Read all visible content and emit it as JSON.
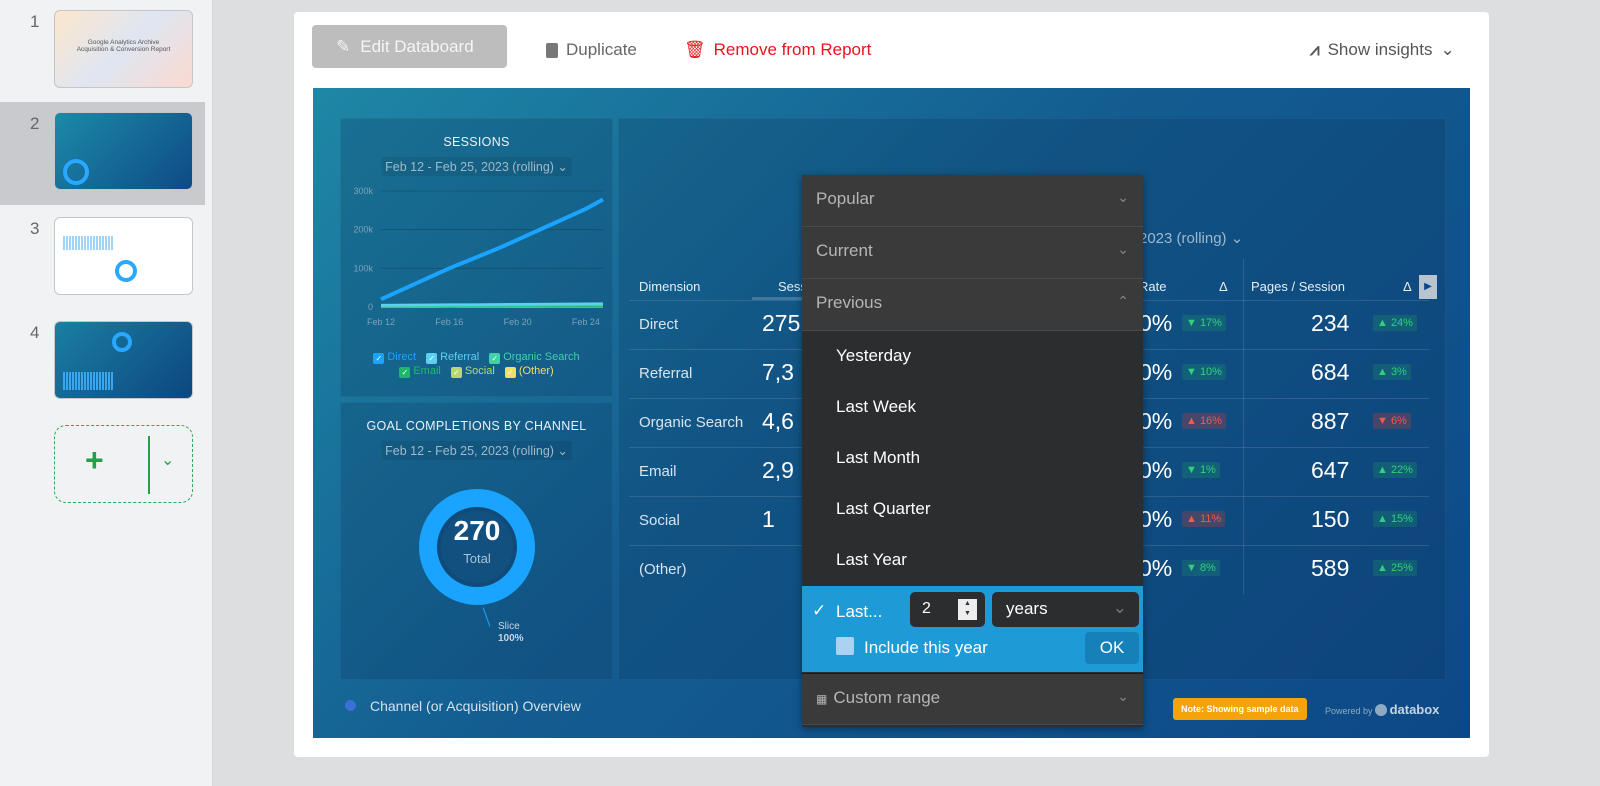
{
  "sidebar": {
    "slides": [
      {
        "num": "1",
        "title": "Google Analytics Archive",
        "subtitle": "Acquisition & Conversion Report"
      },
      {
        "num": "2"
      },
      {
        "num": "3"
      },
      {
        "num": "4"
      }
    ],
    "add_label": "+"
  },
  "toolbar": {
    "edit": "Edit Databoard",
    "duplicate": "Duplicate",
    "remove": "Remove from Report",
    "insights": "Show insights"
  },
  "sessions": {
    "title": "SESSIONS",
    "date": "Feb 12 - Feb 25, 2023 (rolling)",
    "legend": [
      {
        "name": "Direct",
        "color": "#1aa3ff"
      },
      {
        "name": "Referral",
        "color": "#5bd0f0"
      },
      {
        "name": "Organic Search",
        "color": "#3fd1a8"
      },
      {
        "name": "Email",
        "color": "#1fb86a"
      },
      {
        "name": "Social",
        "color": "#b7d96a"
      },
      {
        "name": "(Other)",
        "color": "#f0e060"
      }
    ]
  },
  "chart_data": {
    "type": "line",
    "x": [
      "Feb 12",
      "Feb 13",
      "Feb 14",
      "Feb 15",
      "Feb 16",
      "Feb 17",
      "Feb 18",
      "Feb 19",
      "Feb 20",
      "Feb 21",
      "Feb 22",
      "Feb 23",
      "Feb 24",
      "Feb 25"
    ],
    "xticks": [
      "Feb 12",
      "Feb 16",
      "Feb 20",
      "Feb 24"
    ],
    "yticks": [
      "0",
      "100k",
      "200k",
      "300k"
    ],
    "ylim": [
      0,
      300000
    ],
    "series": [
      {
        "name": "Direct",
        "values": [
          20000,
          40000,
          60000,
          80000,
          100000,
          118000,
          136000,
          154000,
          174000,
          194000,
          214000,
          234000,
          254000,
          278000
        ]
      },
      {
        "name": "Referral",
        "values": [
          5000,
          5200,
          5500,
          5800,
          6000,
          6300,
          6600,
          6900,
          7200,
          7500,
          7800,
          8100,
          8400,
          8700
        ]
      },
      {
        "name": "Organic Search",
        "values": [
          3000,
          3200,
          3400,
          3600,
          3800,
          4000,
          4200,
          4400,
          4600,
          4800,
          5000,
          5200,
          5400,
          5600
        ]
      },
      {
        "name": "Email",
        "values": [
          2000,
          2100,
          2200,
          2300,
          2400,
          2500,
          2600,
          2700,
          2800,
          2900,
          3000,
          3100,
          3200,
          3300
        ]
      },
      {
        "name": "Social",
        "values": [
          1000,
          1000,
          1100,
          1100,
          1200,
          1200,
          1300,
          1300,
          1400,
          1400,
          1500,
          1500,
          1600,
          1600
        ]
      },
      {
        "name": "(Other)",
        "values": [
          2000,
          2000,
          2000,
          2100,
          2100,
          2100,
          2200,
          2200,
          2200,
          2300,
          2300,
          2300,
          2400,
          2400
        ]
      }
    ]
  },
  "goals": {
    "title": "GOAL COMPLETIONS BY CHANNEL",
    "date": "Feb 12 - Feb 25, 2023 (rolling)",
    "total": "270",
    "total_label": "Total",
    "slice_label": "Slice",
    "slice_pct": "100%"
  },
  "table": {
    "date_fragment": "2023 (rolling)",
    "headers": {
      "dimension": "Dimension",
      "sessions": "Sess",
      "rate": "Rate",
      "delta": "Δ",
      "pages": "Pages / Session",
      "delta2": "Δ"
    },
    "rows": [
      {
        "dim": "Direct",
        "sessions": "275",
        "rate": "0%",
        "rate_delta": "▼ 17%",
        "rate_dir": "up",
        "pages": "234",
        "pages_delta": "▲ 24%",
        "pages_dir": "up"
      },
      {
        "dim": "Referral",
        "sessions": "7,3",
        "rate": "0%",
        "rate_delta": "▼ 10%",
        "rate_dir": "up",
        "pages": "684",
        "pages_delta": "▲ 3%",
        "pages_dir": "up"
      },
      {
        "dim": "Organic Search",
        "sessions": "4,6",
        "rate": "0%",
        "rate_delta": "▲ 16%",
        "rate_dir": "dn",
        "pages": "887",
        "pages_delta": "▼ 6%",
        "pages_dir": "dn"
      },
      {
        "dim": "Email",
        "sessions": "2,9",
        "rate": "0%",
        "rate_delta": "▼ 1%",
        "rate_dir": "up",
        "pages": "647",
        "pages_delta": "▲ 22%",
        "pages_dir": "up"
      },
      {
        "dim": "Social",
        "sessions": "1",
        "rate": "0%",
        "rate_delta": "▲ 11%",
        "rate_dir": "dn",
        "pages": "150",
        "pages_delta": "▲ 15%",
        "pages_dir": "up"
      },
      {
        "dim": "(Other)",
        "sessions": "",
        "rate": "0%",
        "rate_delta": "▼ 8%",
        "rate_dir": "up",
        "pages": "589",
        "pages_delta": "▲ 25%",
        "pages_dir": "up"
      }
    ]
  },
  "dropdown": {
    "popular": "Popular",
    "current": "Current",
    "previous": "Previous",
    "options": [
      "Yesterday",
      "Last Week",
      "Last Month",
      "Last Quarter",
      "Last Year"
    ],
    "last_label": "Last...",
    "last_value": "2",
    "unit": "years",
    "include": "Include this year",
    "include_checked": false,
    "ok": "OK",
    "custom": "Custom range"
  },
  "footer": {
    "title": "Channel (or Acquisition) Overview",
    "note": "Note: Showing sample data",
    "powered": "Powered by",
    "brand": "databox",
    "note_color": "#f5a30a"
  }
}
